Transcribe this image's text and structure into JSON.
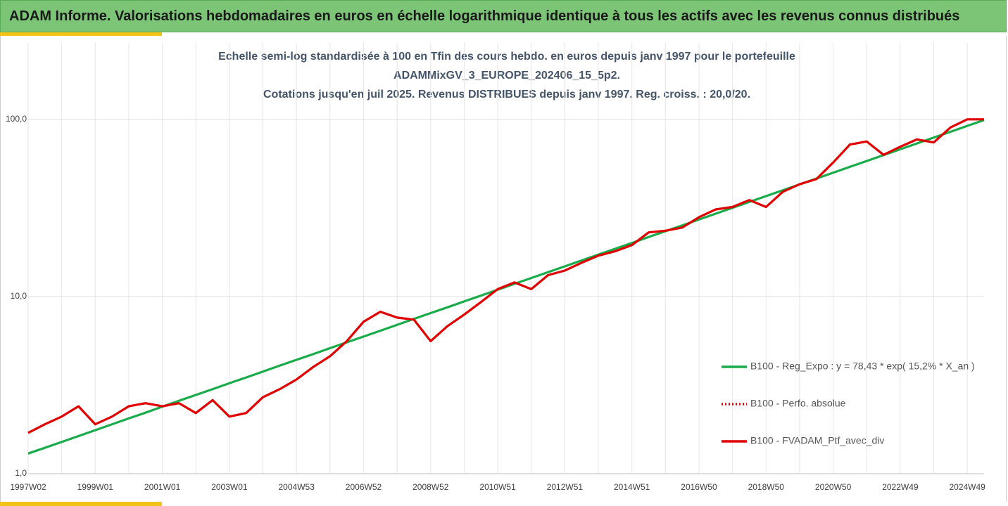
{
  "chart_data": {
    "type": "line",
    "title": "ADAM Informe. Valorisations hebdomadaires en euros en échelle logarithmique identique à tous les actifs avec les revenus connus distribués",
    "subtitle": [
      "Echelle semi-log standardisée à 100 en Tfin des cours hebdo.  en euros depuis janv 1997 pour le portefeuille",
      "ADAMMixGV_3_EUROPE_202406_15_5p2.",
      "Cotations  jusqu'en juil 2025. Revenus DISTRIBUES depuis janv 1997. Reg. croiss. : 20,0/20."
    ],
    "categories": [
      "1997W02",
      null,
      null,
      null,
      "1999W01",
      null,
      null,
      null,
      "2001W01",
      null,
      null,
      null,
      "2003W01",
      null,
      null,
      null,
      "2004W53",
      null,
      null,
      null,
      "2006W52",
      null,
      null,
      null,
      "2008W52",
      null,
      null,
      null,
      "2010W51",
      null,
      null,
      null,
      "2012W51",
      null,
      null,
      null,
      "2014W51",
      null,
      null,
      null,
      "2016W50",
      null,
      null,
      null,
      "2018W50",
      null,
      null,
      null,
      "2020W50",
      null,
      null,
      null,
      "2022W49",
      null,
      null,
      null,
      "2024W49",
      null
    ],
    "series": [
      {
        "name": "B100 - Reg_Expo : y = 78,43 * exp( 15,2% *  X_an )",
        "color": "#1aab4b",
        "style": "solid",
        "values": [
          1.3,
          1.4,
          1.51,
          1.63,
          1.76,
          1.9,
          2.05,
          2.21,
          2.39,
          2.58,
          2.78,
          3.0,
          3.24,
          3.49,
          3.77,
          4.07,
          4.39,
          4.73,
          5.11,
          5.51,
          5.94,
          6.41,
          6.92,
          7.47,
          8.06,
          8.69,
          9.38,
          10.12,
          10.92,
          11.78,
          12.71,
          13.72,
          14.8,
          15.97,
          17.23,
          18.59,
          20.06,
          21.65,
          23.36,
          25.2,
          27.19,
          29.34,
          31.66,
          34.16,
          36.86,
          39.77,
          42.91,
          46.3,
          49.96,
          53.91,
          58.17,
          62.76,
          67.72,
          73.07,
          78.84,
          85.07,
          91.79,
          99.04
        ]
      },
      {
        "name": "B100 - Perfo. absolue",
        "color": "#e00000",
        "style": "dotted",
        "values": [
          1.7,
          1.9,
          2.1,
          2.4,
          1.9,
          2.1,
          2.4,
          2.5,
          2.4,
          2.5,
          2.2,
          2.6,
          2.1,
          2.2,
          2.7,
          3.0,
          3.4,
          4.0,
          4.6,
          5.6,
          7.2,
          8.2,
          7.6,
          7.4,
          5.6,
          6.8,
          7.9,
          9.3,
          11.0,
          12.0,
          11.0,
          13.2,
          14.0,
          15.5,
          17.0,
          18.0,
          19.5,
          23.0,
          23.5,
          24.5,
          28,
          31,
          32,
          35,
          32,
          39,
          43,
          46,
          57,
          72,
          75,
          63,
          70,
          77,
          74,
          90,
          100,
          100
        ]
      },
      {
        "name": "B100 - FVADAM_Ptf_avec_div",
        "color": "#e00000",
        "style": "solid",
        "values": [
          1.7,
          1.9,
          2.1,
          2.4,
          1.9,
          2.1,
          2.4,
          2.5,
          2.4,
          2.5,
          2.2,
          2.6,
          2.1,
          2.2,
          2.7,
          3.0,
          3.4,
          4.0,
          4.6,
          5.6,
          7.2,
          8.2,
          7.6,
          7.4,
          5.6,
          6.8,
          7.9,
          9.3,
          11.0,
          12.0,
          11.0,
          13.2,
          14.0,
          15.5,
          17.0,
          18.0,
          19.5,
          23.0,
          23.5,
          24.5,
          28,
          31,
          32,
          35,
          32,
          39,
          43,
          46,
          57,
          72,
          75,
          63,
          70,
          77,
          74,
          90,
          100,
          100
        ]
      }
    ],
    "ylim": [
      1,
      270
    ],
    "yticks": [
      {
        "value": 1,
        "label": "1,0"
      },
      {
        "value": 10,
        "label": "10,0"
      },
      {
        "value": 100,
        "label": "100,0"
      }
    ],
    "log_y": true,
    "grid": true,
    "legend": "right"
  }
}
